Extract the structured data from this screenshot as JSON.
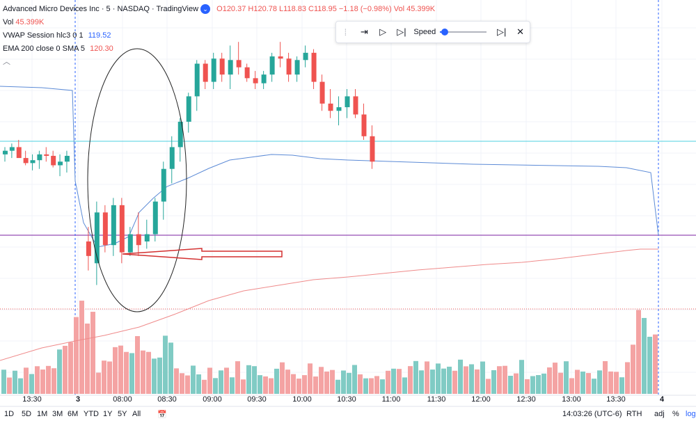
{
  "legend": {
    "title": "Advanced Micro Devices Inc · 5 · NASDAQ · TradingView",
    "ohlc": "O120.37 H120.78 L118.83 C118.95 −1.18 (−0.98%) Vol",
    "ohlc_vol": "45.399K",
    "vol_label": "Vol",
    "vol_value": "45.399K",
    "vwap_label": "VWAP Session hlc3 0 1",
    "vwap_value": "119.52",
    "ema_label": "EMA 200 close 0 SMA 5",
    "ema_value": "120.30"
  },
  "replay_toolbar": {
    "speed_label": "Speed",
    "speed_level": 0.1
  },
  "time_axis": {
    "labels": [
      "13:30",
      "3",
      "08:00",
      "08:30",
      "09:00",
      "09:30",
      "10:00",
      "10:30",
      "11:00",
      "11:30",
      "12:00",
      "12:30",
      "13:00",
      "13:30",
      "4"
    ]
  },
  "ranges": [
    "1D",
    "5D",
    "1M",
    "3M",
    "6M",
    "YTD",
    "1Y",
    "5Y",
    "All"
  ],
  "bottom_right": {
    "clock": "14:03:26 (UTC-6)",
    "session": "RTH",
    "adj": "adj",
    "percent": "%",
    "log": "log"
  },
  "colors": {
    "up": "#26a69a",
    "down": "#ef5350",
    "vwap": "#5b8ad6",
    "ema": "#ef8a8a",
    "cyan_line": "#4dd0e1",
    "purple_line": "#7b1fa2",
    "arrow": "#d32f2f"
  },
  "chart_data": {
    "type": "candlestick",
    "series": [
      {
        "name": "price",
        "values": [
          [
            120.4,
            120.5,
            120.3,
            120.45
          ],
          [
            120.45,
            120.55,
            120.35,
            120.5
          ],
          [
            120.5,
            120.6,
            120.4,
            120.35
          ],
          [
            120.35,
            120.45,
            120.25,
            120.28
          ],
          [
            120.28,
            120.4,
            120.18,
            120.32
          ],
          [
            120.32,
            120.45,
            120.2,
            120.4
          ],
          [
            120.4,
            120.5,
            120.3,
            120.38
          ],
          [
            120.38,
            120.45,
            120.22,
            120.25
          ],
          [
            120.25,
            120.4,
            120.1,
            120.3
          ],
          [
            120.3,
            120.45,
            120.15,
            120.38
          ],
          [
            119.2,
            119.4,
            118.8,
            119.0
          ],
          [
            118.9,
            119.75,
            118.6,
            119.6
          ],
          [
            119.6,
            119.7,
            119.05,
            119.15
          ],
          [
            119.15,
            119.8,
            119.0,
            119.7
          ],
          [
            119.7,
            119.8,
            118.9,
            119.05
          ],
          [
            119.05,
            119.4,
            119.0,
            119.3
          ],
          [
            119.3,
            119.6,
            119.0,
            119.15
          ],
          [
            119.2,
            119.5,
            119.1,
            119.3
          ],
          [
            119.3,
            119.8,
            119.2,
            119.75
          ],
          [
            119.75,
            120.3,
            119.5,
            120.2
          ],
          [
            120.2,
            120.65,
            120.0,
            120.5
          ],
          [
            120.5,
            120.9,
            120.3,
            120.85
          ],
          [
            120.85,
            121.25,
            120.7,
            121.2
          ],
          [
            121.2,
            121.7,
            121.0,
            121.65
          ],
          [
            121.65,
            121.7,
            121.3,
            121.4
          ],
          [
            121.4,
            121.8,
            121.3,
            121.72
          ],
          [
            121.72,
            121.8,
            121.4,
            121.5
          ],
          [
            121.5,
            121.9,
            121.3,
            121.7
          ],
          [
            121.7,
            121.95,
            121.5,
            121.6
          ],
          [
            121.6,
            121.65,
            121.4,
            121.45
          ],
          [
            121.45,
            121.55,
            121.3,
            121.38
          ],
          [
            121.38,
            121.55,
            121.3,
            121.5
          ],
          [
            121.5,
            121.8,
            121.4,
            121.75
          ],
          [
            121.75,
            121.95,
            121.6,
            121.72
          ],
          [
            121.72,
            121.8,
            121.4,
            121.5
          ],
          [
            121.5,
            121.75,
            121.4,
            121.7
          ],
          [
            121.7,
            121.9,
            121.6,
            121.8
          ],
          [
            121.8,
            121.85,
            121.3,
            121.4
          ],
          [
            121.4,
            121.5,
            121.0,
            121.1
          ],
          [
            121.1,
            121.3,
            120.9,
            121.0
          ],
          [
            121.0,
            121.2,
            120.8,
            121.05
          ],
          [
            121.05,
            121.3,
            120.9,
            121.2
          ],
          [
            121.2,
            121.3,
            120.9,
            120.95
          ],
          [
            120.95,
            121.1,
            120.6,
            120.65
          ],
          [
            120.65,
            120.8,
            120.2,
            120.3
          ]
        ]
      }
    ]
  }
}
